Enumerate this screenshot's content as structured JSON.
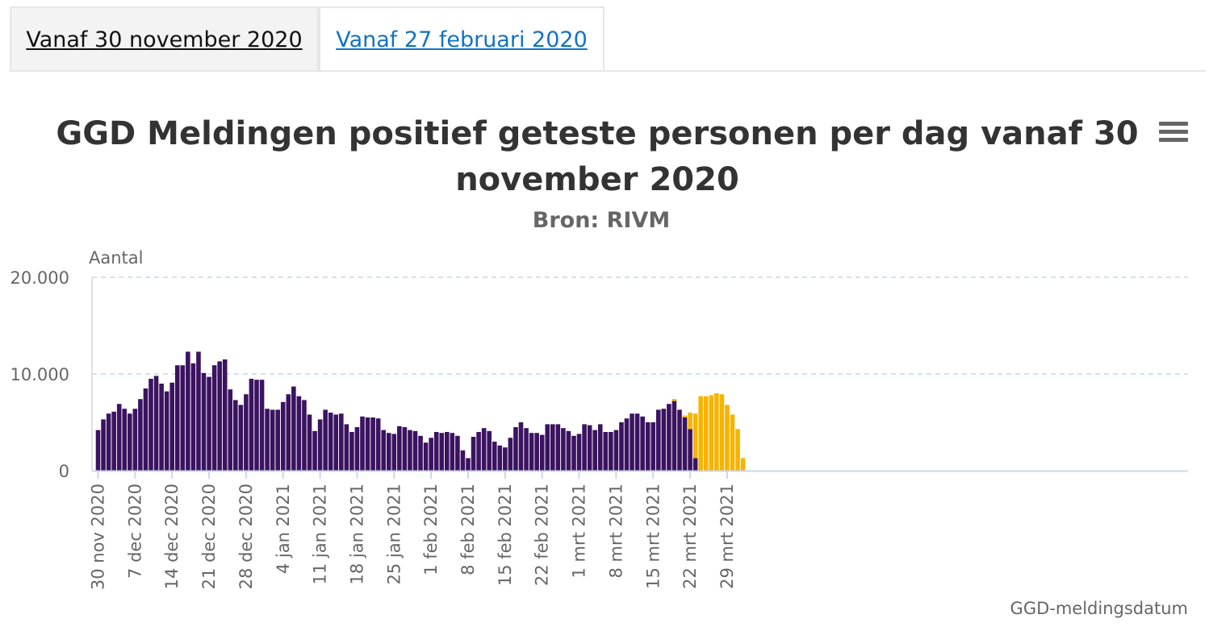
{
  "tabs": [
    {
      "label": "Vanaf 30 november 2020",
      "active": true
    },
    {
      "label": "Vanaf 27 februari 2020",
      "active": false
    }
  ],
  "menu": {
    "icon": "hamburger-menu-icon"
  },
  "colors": {
    "complete": "#3b1360",
    "incomplete": "#f5b400",
    "grid": "#c6d6ec",
    "tab_link": "#1273c4"
  },
  "chart_data": {
    "type": "bar",
    "title": "GGD Meldingen positief geteste personen per dag vanaf 30 november 2020",
    "subtitle": "Bron: RIVM",
    "ylabel": "Aantal",
    "xlabel": "GGD-meldingsdatum",
    "ylim": [
      0,
      20000
    ],
    "y_ticks": [
      "0",
      "10.000",
      "20.000"
    ],
    "grid": true,
    "stacked": true,
    "start_date": "2020-11-30",
    "x_tick_labels": [
      "30 nov 2020",
      "7 dec 2020",
      "14 dec 2020",
      "21 dec 2020",
      "28 dec 2020",
      "4 jan 2021",
      "11 jan 2021",
      "18 jan 2021",
      "25 jan 2021",
      "1 feb 2021",
      "8 feb 2021",
      "15 feb 2021",
      "22 feb 2021",
      "1 mrt 2021",
      "8 mrt 2021",
      "15 mrt 2021",
      "22 mrt 2021",
      "29 mrt 2021"
    ],
    "series": [
      {
        "color": "#3b1360",
        "values": [
          4200,
          5300,
          5900,
          6100,
          6900,
          6400,
          5900,
          6400,
          7400,
          8500,
          9500,
          9800,
          9000,
          8200,
          9100,
          10900,
          10900,
          12300,
          11100,
          12300,
          10100,
          9700,
          10900,
          11300,
          11500,
          8400,
          7300,
          6800,
          7900,
          9500,
          9400,
          9400,
          6400,
          6300,
          6300,
          7100,
          7900,
          8700,
          7700,
          7300,
          5800,
          4100,
          5300,
          6300,
          6000,
          5800,
          5900,
          4800,
          4000,
          4500,
          5600,
          5500,
          5500,
          5400,
          4200,
          3900,
          3800,
          4600,
          4500,
          4200,
          4100,
          3600,
          2900,
          3400,
          4000,
          3900,
          4000,
          3900,
          3600,
          2100,
          1300,
          3500,
          4000,
          4400,
          4100,
          3000,
          2600,
          2400,
          3400,
          4500,
          5000,
          4400,
          3900,
          3900,
          3700,
          4800,
          4800,
          4800,
          4400,
          4100,
          3600,
          3800,
          4800,
          4700,
          4200,
          4800,
          4000,
          4000,
          4200,
          5000,
          5400,
          5900,
          5900,
          5600,
          5000,
          5000,
          6300,
          6400,
          6900,
          7200,
          6300,
          5500,
          4300,
          1300,
          0,
          0,
          0,
          0,
          0,
          0,
          0,
          0,
          0
        ]
      },
      {
        "color": "#f5b400",
        "values": [
          0,
          0,
          0,
          0,
          0,
          0,
          0,
          0,
          0,
          0,
          0,
          0,
          0,
          0,
          0,
          0,
          0,
          0,
          0,
          0,
          0,
          0,
          0,
          0,
          0,
          0,
          0,
          0,
          0,
          0,
          0,
          0,
          0,
          0,
          0,
          0,
          0,
          0,
          0,
          0,
          0,
          0,
          0,
          0,
          0,
          0,
          0,
          0,
          0,
          0,
          0,
          0,
          0,
          0,
          0,
          0,
          0,
          0,
          0,
          0,
          0,
          0,
          0,
          0,
          0,
          0,
          0,
          0,
          0,
          0,
          0,
          0,
          0,
          0,
          0,
          0,
          0,
          0,
          0,
          0,
          0,
          0,
          0,
          0,
          0,
          0,
          0,
          0,
          0,
          0,
          0,
          0,
          0,
          0,
          0,
          0,
          0,
          0,
          0,
          0,
          0,
          0,
          0,
          0,
          0,
          0,
          0,
          0,
          0,
          200,
          0,
          200,
          1700,
          4600,
          7700,
          7700,
          7800,
          8000,
          7900,
          6800,
          5800,
          4300,
          1300
        ]
      }
    ]
  }
}
